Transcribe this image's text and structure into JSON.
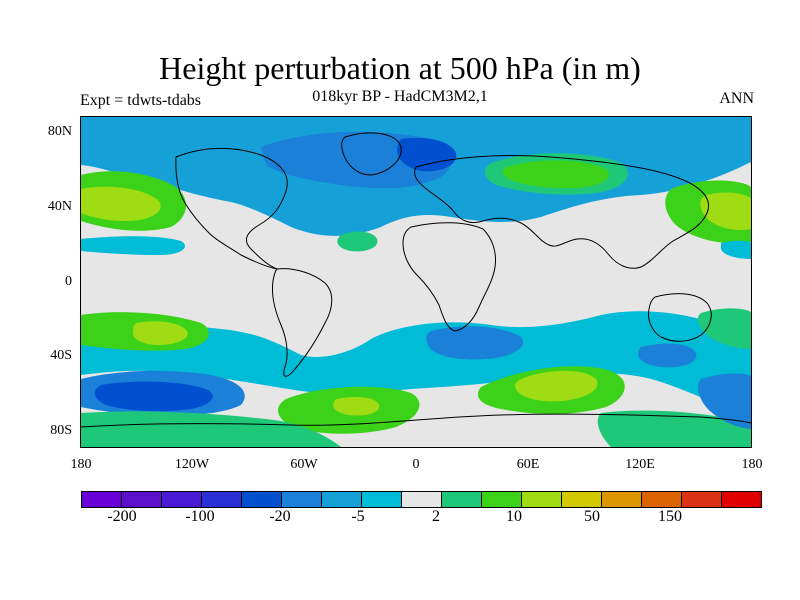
{
  "title": "Height perturbation at 500 hPa (in m)",
  "subtitle": "018kyr BP - HadCM3M2,1",
  "left_label": "Expt = tdwts-tdabs",
  "right_label": "ANN",
  "y_ticks": [
    "80N",
    "40N",
    "0",
    "40S",
    "80S"
  ],
  "x_ticks": [
    "180",
    "120W",
    "60W",
    "0",
    "60E",
    "120E",
    "180"
  ],
  "colorbar": {
    "colors": [
      "#6a00d8",
      "#5b10c9",
      "#4a1bd4",
      "#2a2fd6",
      "#0050d0",
      "#1b80d8",
      "#16a0d8",
      "#00bcd6",
      "#e6e6e6",
      "#1ec878",
      "#3cd21a",
      "#a0dc14",
      "#d2c800",
      "#dc9600",
      "#dc6400",
      "#dc3214",
      "#e00000"
    ],
    "labels": [
      "-200",
      "-100",
      "-20",
      "-5",
      "2",
      "10",
      "50",
      "150"
    ]
  },
  "map": {
    "background_color": "#e6e6e6",
    "projection": "cylindrical-equidistant",
    "lon_range": [
      -180,
      180
    ],
    "lat_range": [
      -90,
      90
    ]
  }
}
